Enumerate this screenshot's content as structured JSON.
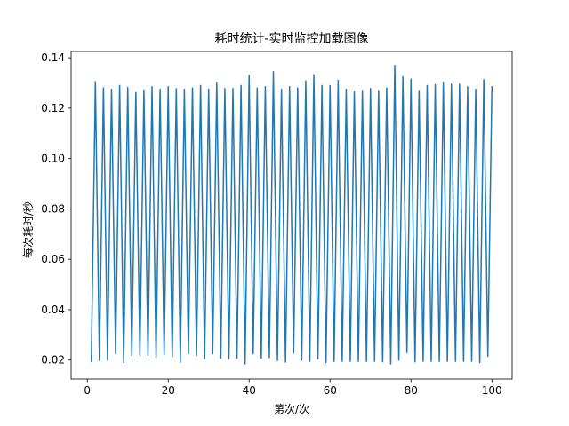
{
  "chart_data": {
    "type": "line",
    "title": "耗时统计-实时监控加载图像",
    "xlabel": "第次/次",
    "ylabel": "每次耗时/秒",
    "xlim": [
      -4,
      105
    ],
    "ylim": [
      0.0125,
      0.1425
    ],
    "xticks": [
      0,
      20,
      40,
      60,
      80,
      100
    ],
    "yticks": [
      0.02,
      0.04,
      0.06,
      0.08,
      0.1,
      0.12,
      0.14
    ],
    "ytick_labels": [
      "0.02",
      "0.04",
      "0.06",
      "0.08",
      "0.10",
      "0.12",
      "0.14"
    ],
    "grid": false,
    "series": [
      {
        "color": "#1f77b4",
        "x": [
          1,
          2,
          3,
          4,
          5,
          6,
          7,
          8,
          9,
          10,
          11,
          12,
          13,
          14,
          15,
          16,
          17,
          18,
          19,
          20,
          21,
          22,
          23,
          24,
          25,
          26,
          27,
          28,
          29,
          30,
          31,
          32,
          33,
          34,
          35,
          36,
          37,
          38,
          39,
          40,
          41,
          42,
          43,
          44,
          45,
          46,
          47,
          48,
          49,
          50,
          51,
          52,
          53,
          54,
          55,
          56,
          57,
          58,
          59,
          60,
          61,
          62,
          63,
          64,
          65,
          66,
          67,
          68,
          69,
          70,
          71,
          72,
          73,
          74,
          75,
          76,
          77,
          78,
          79,
          80,
          81,
          82,
          83,
          84,
          85,
          86,
          87,
          88,
          89,
          90,
          91,
          92,
          93,
          94,
          95,
          96,
          97,
          98,
          99,
          100
        ],
        "values": [
          0.0195,
          0.1305,
          0.0198,
          0.128,
          0.02,
          0.1275,
          0.0225,
          0.129,
          0.019,
          0.1282,
          0.0218,
          0.1262,
          0.022,
          0.1272,
          0.0218,
          0.1285,
          0.021,
          0.1275,
          0.0222,
          0.1285,
          0.0213,
          0.1277,
          0.0192,
          0.1275,
          0.0225,
          0.128,
          0.0218,
          0.129,
          0.0205,
          0.1275,
          0.0225,
          0.1303,
          0.0208,
          0.1278,
          0.0205,
          0.1278,
          0.0208,
          0.129,
          0.0185,
          0.133,
          0.0225,
          0.128,
          0.0208,
          0.1285,
          0.021,
          0.1345,
          0.0198,
          0.1275,
          0.0192,
          0.1285,
          0.0228,
          0.128,
          0.02,
          0.1308,
          0.0195,
          0.1333,
          0.0205,
          0.129,
          0.019,
          0.129,
          0.0195,
          0.131,
          0.0195,
          0.1275,
          0.0195,
          0.1265,
          0.0195,
          0.127,
          0.0195,
          0.1278,
          0.0195,
          0.127,
          0.0193,
          0.128,
          0.0185,
          0.137,
          0.02,
          0.1325,
          0.023,
          0.1315,
          0.0193,
          0.127,
          0.0195,
          0.129,
          0.0195,
          0.1293,
          0.0195,
          0.1303,
          0.0195,
          0.1295,
          0.0195,
          0.1295,
          0.0195,
          0.1285,
          0.0195,
          0.1275,
          0.019,
          0.1313,
          0.0215,
          0.1285
        ]
      }
    ]
  }
}
